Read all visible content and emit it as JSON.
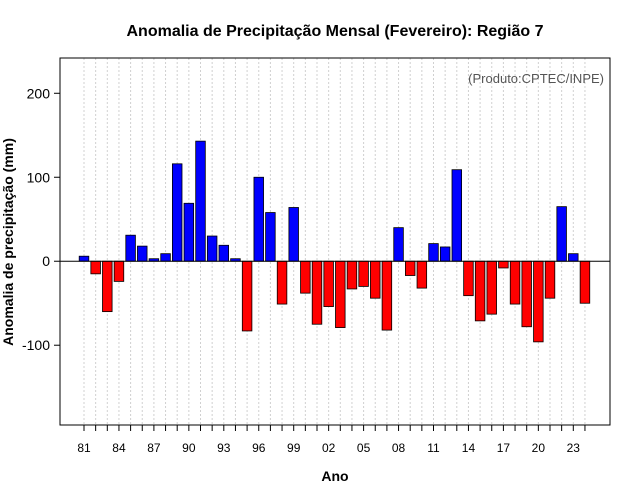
{
  "chart_data": {
    "type": "bar",
    "title": "Anomalia de Precipitação Mensal (Fevereiro): Região 7",
    "xlabel": "Ano",
    "ylabel": "Anomalia de precipitação (mm)",
    "credit": "(Produto:CPTEC/INPE)",
    "ylim": [
      -195,
      242
    ],
    "yticks": [
      -100,
      0,
      100,
      200
    ],
    "years": [
      1981,
      1982,
      1983,
      1984,
      1985,
      1986,
      1987,
      1988,
      1989,
      1990,
      1991,
      1992,
      1993,
      1994,
      1995,
      1996,
      1997,
      1998,
      1999,
      2000,
      2001,
      2002,
      2003,
      2004,
      2005,
      2006,
      2007,
      2008,
      2009,
      2010,
      2011,
      2012,
      2013,
      2014,
      2015,
      2016,
      2017,
      2018,
      2019,
      2020,
      2021,
      2022,
      2023,
      2024
    ],
    "values": [
      6,
      -15,
      -60,
      -24,
      31,
      18,
      3,
      9,
      116,
      69,
      143,
      30,
      19,
      3,
      -83,
      100,
      58,
      -51,
      64,
      -38,
      -75,
      -54,
      -79,
      -33,
      -30,
      -44,
      -82,
      40,
      -17,
      -32,
      21,
      17,
      109,
      -41,
      -71,
      -63,
      -8,
      -51,
      -78,
      -96,
      -44,
      65,
      9,
      -50
    ],
    "xtick_labels": [
      "81",
      "84",
      "87",
      "90",
      "93",
      "96",
      "99",
      "02",
      "05",
      "08",
      "11",
      "14",
      "17",
      "20",
      "23"
    ],
    "xtick_years": [
      1981,
      1984,
      1987,
      1990,
      1993,
      1996,
      1999,
      2002,
      2005,
      2008,
      2011,
      2014,
      2017,
      2020,
      2023
    ],
    "positive_color": "#0000ff",
    "negative_color": "#ff0000",
    "grid": true
  }
}
